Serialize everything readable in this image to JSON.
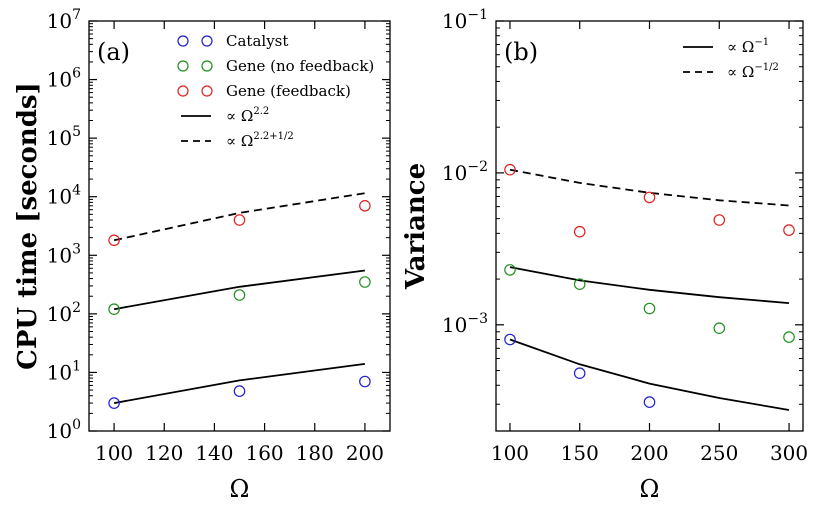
{
  "colors": {
    "catalyst": "#1f1fd0",
    "gene_no_feedback": "#1f8f1f",
    "gene_feedback": "#e02020",
    "line": "#000000"
  },
  "chart_data": [
    {
      "type": "scatter",
      "panel_label": "(a)",
      "ylabel": "CPU time [seconds]",
      "xlabel": "Ω",
      "yscale": "log",
      "xlim": [
        90,
        210
      ],
      "ylim": [
        1,
        10000000
      ],
      "xticks": [
        100,
        120,
        140,
        160,
        180,
        200
      ],
      "yticks": [
        {
          "value": 1,
          "base": "10",
          "exp": "0"
        },
        {
          "value": 10,
          "base": "10",
          "exp": "1"
        },
        {
          "value": 100,
          "base": "10",
          "exp": "2"
        },
        {
          "value": 1000,
          "base": "10",
          "exp": "3"
        },
        {
          "value": 10000,
          "base": "10",
          "exp": "4"
        },
        {
          "value": 100000,
          "base": "10",
          "exp": "5"
        },
        {
          "value": 1000000,
          "base": "10",
          "exp": "6"
        },
        {
          "value": 10000000,
          "base": "10",
          "exp": "7"
        }
      ],
      "legend_position": "top-right",
      "series": [
        {
          "name": "Catalyst",
          "kind": "marker",
          "color_key": "catalyst",
          "x": [
            100,
            150,
            200
          ],
          "y": [
            3,
            4.8,
            7
          ]
        },
        {
          "name": "Gene (no feedback)",
          "kind": "marker",
          "color_key": "gene_no_feedback",
          "x": [
            100,
            150,
            200
          ],
          "y": [
            120,
            210,
            350
          ]
        },
        {
          "name": "Gene (feedback)",
          "kind": "marker",
          "color_key": "gene_feedback",
          "x": [
            100,
            150,
            200
          ],
          "y": [
            1800,
            4000,
            7000
          ]
        }
      ],
      "lines": [
        {
          "legend": "∝ Ω",
          "exp": "2.2",
          "dash": false,
          "in_legend": true,
          "x": [
            100,
            150,
            200
          ],
          "y": [
            3,
            7.3,
            14
          ]
        },
        {
          "legend": "",
          "exp": "",
          "dash": false,
          "in_legend": false,
          "x": [
            100,
            150,
            200
          ],
          "y": [
            120,
            290,
            550
          ]
        },
        {
          "legend": "∝ Ω",
          "exp": "2.2+1/2",
          "dash": true,
          "in_legend": true,
          "x": [
            100,
            150,
            200
          ],
          "y": [
            1800,
            5300,
            11500
          ]
        }
      ]
    },
    {
      "type": "scatter",
      "panel_label": "(b)",
      "ylabel": "Variance",
      "xlabel": "Ω",
      "yscale": "log",
      "xlim": [
        90,
        310
      ],
      "ylim": [
        0.0002,
        0.1
      ],
      "xticks": [
        100,
        150,
        200,
        250,
        300
      ],
      "yticks": [
        {
          "value": 0.001,
          "base": "10",
          "exp": "−3"
        },
        {
          "value": 0.01,
          "base": "10",
          "exp": "−2"
        },
        {
          "value": 0.1,
          "base": "10",
          "exp": "−1"
        }
      ],
      "legend_position": "top-right",
      "series": [
        {
          "name": "Catalyst",
          "kind": "marker",
          "color_key": "catalyst",
          "x": [
            100,
            150,
            200
          ],
          "y": [
            0.0008,
            0.00048,
            0.00031
          ]
        },
        {
          "name": "Gene (no feedback)",
          "kind": "marker",
          "color_key": "gene_no_feedback",
          "x": [
            100,
            150,
            200,
            250,
            300
          ],
          "y": [
            0.0023,
            0.00185,
            0.00128,
            0.00095,
            0.00083
          ]
        },
        {
          "name": "Gene (feedback)",
          "kind": "marker",
          "color_key": "gene_feedback",
          "x": [
            100,
            150,
            200,
            250,
            300
          ],
          "y": [
            0.0105,
            0.0041,
            0.0069,
            0.0049,
            0.0042
          ]
        }
      ],
      "lines": [
        {
          "legend": "∝ Ω",
          "exp": "−1",
          "dash": false,
          "in_legend": true,
          "x": [
            100,
            150,
            200,
            250,
            300
          ],
          "y": [
            0.0008,
            0.00055,
            0.00041,
            0.00033,
            0.000275
          ]
        },
        {
          "legend": "",
          "exp": "",
          "dash": false,
          "in_legend": false,
          "x": [
            100,
            150,
            200,
            250,
            300
          ],
          "y": [
            0.0024,
            0.00196,
            0.0017,
            0.00152,
            0.00139
          ]
        },
        {
          "legend": "∝ Ω",
          "exp": "−1/2",
          "dash": true,
          "in_legend": true,
          "x": [
            100,
            150,
            200,
            250,
            300
          ],
          "y": [
            0.0105,
            0.0086,
            0.0074,
            0.0066,
            0.0061
          ]
        }
      ]
    }
  ]
}
